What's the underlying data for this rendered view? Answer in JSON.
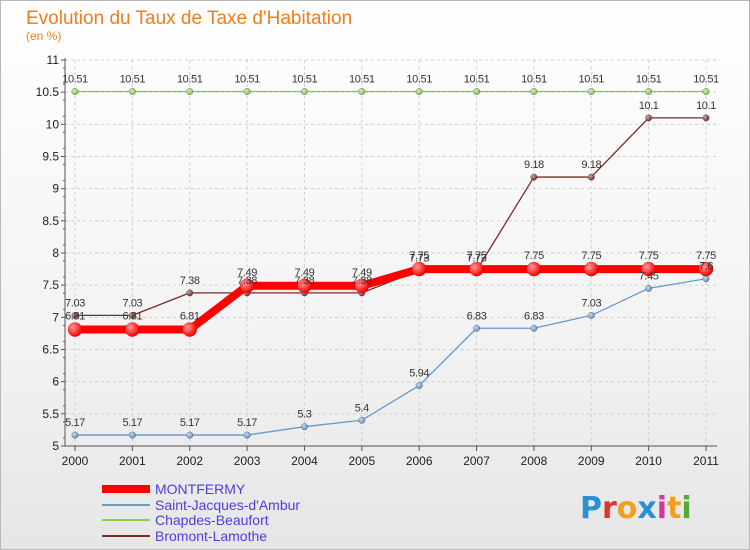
{
  "chart_data": {
    "type": "line",
    "title": "Evolution du Taux de Taxe d'Habitation",
    "subtitle": "(en %)",
    "x": [
      "2000",
      "2001",
      "2002",
      "2003",
      "2004",
      "2005",
      "2006",
      "2007",
      "2008",
      "2009",
      "2010",
      "2011"
    ],
    "ylim": [
      5,
      11
    ],
    "yticks": [
      5,
      5.5,
      6,
      6.5,
      7,
      7.5,
      8,
      8.5,
      9,
      9.5,
      10,
      10.5,
      11
    ],
    "ytick_labels": [
      "5",
      "5.5",
      "6",
      "6.5",
      "7",
      "7.5",
      "8",
      "8.5",
      "9",
      "9.5",
      "10",
      "10.5",
      "11"
    ],
    "grid": true,
    "legend_position": "bottom-left",
    "series": [
      {
        "name": "MONTFERMY",
        "color": "#ff0000",
        "values": [
          6.81,
          6.81,
          6.81,
          7.49,
          7.49,
          7.49,
          7.75,
          7.75,
          7.75,
          7.75,
          7.75,
          7.75
        ],
        "labels": [
          "6.81",
          "6.81",
          "6.81",
          "7.49",
          "7.49",
          "7.49",
          "7.75",
          "7.75",
          "7.75",
          "7.75",
          "7.75",
          "7.75"
        ]
      },
      {
        "name": "Saint-Jacques-d'Ambur",
        "color": "#6699cc",
        "values": [
          5.17,
          5.17,
          5.17,
          5.17,
          5.3,
          5.4,
          5.94,
          6.83,
          6.83,
          7.03,
          7.45,
          7.6
        ],
        "labels": [
          "5.17",
          "5.17",
          "5.17",
          "5.17",
          "5.3",
          "5.4",
          "5.94",
          "6.83",
          "6.83",
          "7.03",
          "7.45",
          "7.6"
        ]
      },
      {
        "name": "Chapdes-Beaufort",
        "color": "#88cc44",
        "values": [
          10.51,
          10.51,
          10.51,
          10.51,
          10.51,
          10.51,
          10.51,
          10.51,
          10.51,
          10.51,
          10.51,
          10.51
        ],
        "labels": [
          "10.51",
          "10.51",
          "10.51",
          "10.51",
          "10.51",
          "10.51",
          "10.51",
          "10.51",
          "10.51",
          "10.51",
          "10.51",
          "10.51"
        ]
      },
      {
        "name": "Bromont-Lamothe",
        "color": "#7a2a2a",
        "values": [
          7.03,
          7.03,
          7.38,
          7.38,
          7.38,
          7.38,
          7.73,
          7.73,
          9.18,
          9.18,
          10.1,
          10.1
        ],
        "labels": [
          "7.03",
          "7.03",
          "7.38",
          "7.38",
          "7.38",
          "7.38",
          "7.73",
          "7.73",
          "9.18",
          "9.18",
          "10.1",
          "10.1"
        ]
      }
    ]
  },
  "logo": {
    "letters": [
      "P",
      "r",
      "o",
      "x",
      "i",
      "t",
      "i"
    ],
    "colors": [
      "#2a8fd6",
      "#e0312b",
      "#f0a020",
      "#2a8fd6",
      "#d03aa0",
      "#f0a020",
      "#55aa33"
    ]
  }
}
